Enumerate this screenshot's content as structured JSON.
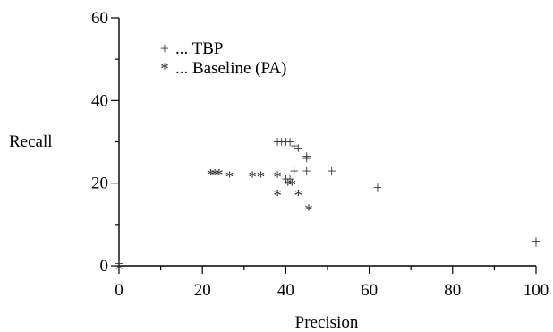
{
  "chart_data": {
    "type": "scatter",
    "title": "",
    "xlabel": "Precision",
    "ylabel": "Recall",
    "xlim": [
      0,
      100
    ],
    "ylim": [
      0,
      60
    ],
    "x_major_ticks": [
      0,
      20,
      40,
      60,
      80,
      100
    ],
    "y_major_ticks": [
      0,
      20,
      40,
      60
    ],
    "x_minor_ticks": [
      10,
      30,
      50,
      70,
      90
    ],
    "y_minor_ticks": [
      10,
      30,
      50
    ],
    "x_tick_labels": [
      "0",
      "20",
      "40",
      "60",
      "80",
      "100"
    ],
    "y_tick_labels": [
      "0",
      "20",
      "40",
      "60"
    ],
    "grid": false,
    "legend_position": "top-left",
    "series": [
      {
        "name": "... TBP",
        "marker": "+",
        "points": [
          [
            0,
            0.5
          ],
          [
            38,
            30
          ],
          [
            39,
            30
          ],
          [
            40,
            30
          ],
          [
            41,
            30
          ],
          [
            42,
            29
          ],
          [
            43,
            28.5
          ],
          [
            45,
            26.5
          ],
          [
            45,
            26
          ],
          [
            42,
            23
          ],
          [
            45,
            23
          ],
          [
            51,
            23
          ],
          [
            40,
            21
          ],
          [
            41,
            21
          ],
          [
            62,
            19
          ],
          [
            100,
            6
          ],
          [
            100,
            5.5
          ]
        ]
      },
      {
        "name": "... Baseline (PA)",
        "marker": "*",
        "points": [
          [
            0,
            0.5
          ],
          [
            22,
            23.5
          ],
          [
            23,
            23.5
          ],
          [
            24,
            23.5
          ],
          [
            26.5,
            23
          ],
          [
            32,
            23
          ],
          [
            34,
            23
          ],
          [
            38,
            23
          ],
          [
            38,
            18.5
          ],
          [
            43,
            18.5
          ],
          [
            40.5,
            21
          ],
          [
            41.5,
            21
          ],
          [
            45.5,
            15
          ]
        ]
      }
    ]
  }
}
